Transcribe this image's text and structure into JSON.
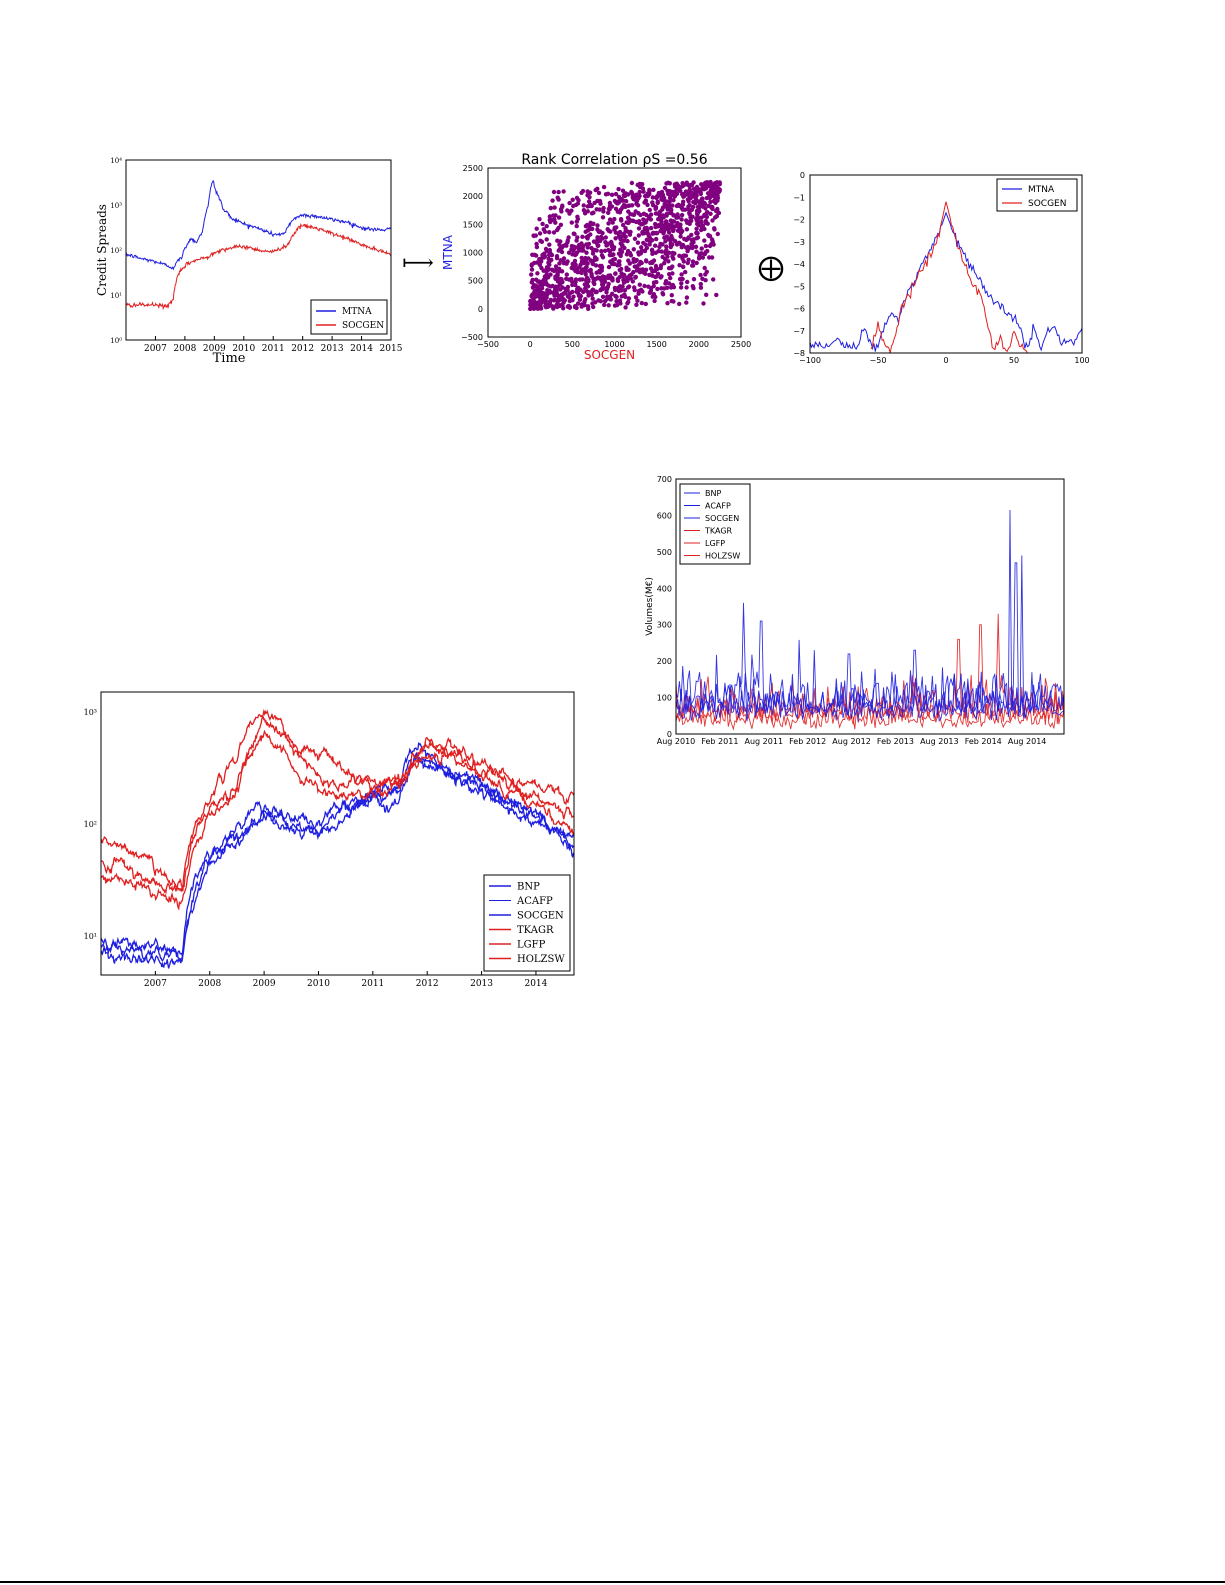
{
  "colors": {
    "blue": "#1f1fe0",
    "red": "#e02020",
    "purple": "#800080",
    "ink": "#000000"
  },
  "symbols": {
    "maps_to": "⟼",
    "oplus": "⨁"
  },
  "chart_data": [
    {
      "id": "spreads_pair",
      "type": "line",
      "title": "",
      "xlabel": "Time",
      "ylabel": "Credit Spreads",
      "yscale": "log",
      "ylim": [
        1,
        10000
      ],
      "xlim": [
        2006.0,
        2015.0
      ],
      "x_ticks": [
        "2007",
        "2008",
        "2009",
        "2010",
        "2011",
        "2012",
        "2013",
        "2014",
        "2015"
      ],
      "y_ticks": [
        "10⁰",
        "10¹",
        "10²",
        "10³",
        "10⁴"
      ],
      "legend": "bottom-right",
      "series": [
        {
          "name": "MTNA",
          "color": "blue",
          "x": [
            2006.0,
            2006.5,
            2007.0,
            2007.4,
            2007.6,
            2007.9,
            2008.2,
            2008.4,
            2008.6,
            2008.8,
            2008.95,
            2009.05,
            2009.3,
            2009.6,
            2010.0,
            2010.5,
            2011.0,
            2011.4,
            2011.7,
            2012.0,
            2012.5,
            2013.0,
            2013.5,
            2014.0,
            2014.5,
            2015.0
          ],
          "y": [
            80,
            65,
            55,
            45,
            40,
            70,
            180,
            150,
            250,
            1000,
            3500,
            2000,
            800,
            500,
            380,
            300,
            220,
            230,
            500,
            600,
            560,
            470,
            420,
            310,
            280,
            290
          ]
        },
        {
          "name": "SOCGEN",
          "color": "red",
          "x": [
            2006.0,
            2006.5,
            2007.0,
            2007.4,
            2007.6,
            2007.8,
            2008.1,
            2008.4,
            2008.8,
            2009.0,
            2009.5,
            2010.0,
            2010.5,
            2011.0,
            2011.5,
            2011.8,
            2012.0,
            2012.5,
            2013.0,
            2013.5,
            2014.0,
            2014.5,
            2015.0
          ],
          "y": [
            6,
            6,
            6,
            5.5,
            8,
            30,
            50,
            60,
            70,
            90,
            110,
            120,
            100,
            90,
            130,
            280,
            350,
            300,
            230,
            180,
            130,
            100,
            80
          ]
        }
      ]
    },
    {
      "id": "rank_correlation",
      "type": "scatter",
      "title": "Rank Correlation ρS =0.56",
      "xlabel": "SOCGEN",
      "ylabel": "MTNA",
      "xlim": [
        -500,
        2500
      ],
      "ylim": [
        -500,
        2500
      ],
      "x_ticks": [
        "−500",
        "0",
        "500",
        "1000",
        "1500",
        "2000",
        "2500"
      ],
      "y_ticks": [
        "−500",
        "0",
        "500",
        "1000",
        "1500",
        "2000",
        "2500"
      ],
      "n_points": 1400,
      "rank_max": 2250,
      "spearman_rho": 0.56
    },
    {
      "id": "log_density",
      "type": "line",
      "title": "",
      "xlim": [
        -100,
        100
      ],
      "ylim": [
        -8,
        0
      ],
      "x_ticks": [
        "−100",
        "−50",
        "0",
        "50",
        "100"
      ],
      "y_ticks": [
        "0",
        "−1",
        "−2",
        "−3",
        "−4",
        "−5",
        "−6",
        "−7",
        "−8"
      ],
      "legend": "top-right",
      "series": [
        {
          "name": "MTNA",
          "color": "blue",
          "x": [
            -100,
            -85,
            -80,
            -75,
            -65,
            -60,
            -55,
            -50,
            -45,
            -40,
            -35,
            -30,
            -25,
            -20,
            -15,
            -10,
            -5,
            0,
            5,
            10,
            15,
            20,
            25,
            30,
            35,
            40,
            45,
            50,
            55,
            60,
            65,
            70,
            75,
            80,
            85,
            90,
            95,
            100
          ],
          "y": [
            -7.7,
            -7.7,
            -7.3,
            -7.7,
            -7.7,
            -6.8,
            -7.7,
            -7.7,
            -6.7,
            -6.2,
            -6.5,
            -5.5,
            -5.0,
            -4.3,
            -3.8,
            -3.3,
            -2.6,
            -1.7,
            -2.5,
            -3.2,
            -3.8,
            -4.2,
            -4.7,
            -5.2,
            -5.6,
            -5.8,
            -6.2,
            -6.5,
            -7.0,
            -7.8,
            -6.7,
            -8.0,
            -6.9,
            -6.9,
            -7.5,
            -7.5,
            -7.4,
            -7.0
          ]
        },
        {
          "name": "SOCGEN",
          "color": "red",
          "x": [
            -55,
            -50,
            -45,
            -40,
            -35,
            -30,
            -25,
            -20,
            -15,
            -10,
            -5,
            0,
            5,
            10,
            15,
            20,
            25,
            30,
            35,
            40,
            45,
            50,
            55,
            60
          ],
          "y": [
            -8.0,
            -6.8,
            -7.5,
            -8.0,
            -6.5,
            -5.6,
            -5.2,
            -4.4,
            -4.0,
            -3.4,
            -2.6,
            -1.2,
            -2.4,
            -3.4,
            -4.1,
            -5.0,
            -5.4,
            -6.4,
            -8.0,
            -7.2,
            -8.0,
            -7.0,
            -7.7,
            -8.0
          ]
        }
      ]
    },
    {
      "id": "volumes",
      "type": "line",
      "title": "",
      "xlabel": "",
      "ylabel": "Volumes(M€)",
      "ylim": [
        0,
        700
      ],
      "xlim": [
        2010.58,
        2015.0
      ],
      "x_ticks": [
        "Aug 2010",
        "Feb 2011",
        "Aug 2011",
        "Feb 2012",
        "Aug 2012",
        "Feb 2013",
        "Aug 2013",
        "Feb 2014",
        "Aug 2014"
      ],
      "y_ticks": [
        "0",
        "100",
        "200",
        "300",
        "400",
        "500",
        "600",
        "700"
      ],
      "legend": "top-left",
      "weeks": 230,
      "series": [
        {
          "name": "BNP",
          "color": "blue",
          "base": 60,
          "amp": 80
        },
        {
          "name": "ACAFP",
          "color": "blue",
          "base": 45,
          "amp": 60
        },
        {
          "name": "SOCGEN",
          "color": "blue",
          "base": 55,
          "amp": 70
        },
        {
          "name": "TKAGR",
          "color": "red",
          "base": 50,
          "amp": 60
        },
        {
          "name": "LGFP",
          "color": "red",
          "base": 40,
          "amp": 50
        },
        {
          "name": "HOLZSW",
          "color": "red",
          "base": 25,
          "amp": 35
        }
      ],
      "peaks": [
        {
          "x": 2011.35,
          "y": 360,
          "color": "blue"
        },
        {
          "x": 2011.55,
          "y": 310,
          "color": "blue"
        },
        {
          "x": 2012.15,
          "y": 230,
          "color": "blue"
        },
        {
          "x": 2012.55,
          "y": 220,
          "color": "blue"
        },
        {
          "x": 2013.3,
          "y": 230,
          "color": "blue"
        },
        {
          "x": 2013.8,
          "y": 260,
          "color": "red"
        },
        {
          "x": 2014.05,
          "y": 300,
          "color": "red"
        },
        {
          "x": 2014.25,
          "y": 330,
          "color": "red"
        },
        {
          "x": 2014.38,
          "y": 615,
          "color": "blue"
        },
        {
          "x": 2014.45,
          "y": 470,
          "color": "blue"
        },
        {
          "x": 2014.52,
          "y": 490,
          "color": "blue"
        }
      ]
    },
    {
      "id": "spreads_six",
      "type": "line",
      "title": "",
      "yscale": "log",
      "ylim": [
        4.5,
        1500
      ],
      "xlim": [
        2006.0,
        2014.7
      ],
      "x_ticks": [
        "2007",
        "2008",
        "2009",
        "2010",
        "2011",
        "2012",
        "2013",
        "2014"
      ],
      "y_ticks": [
        "10¹",
        "10²",
        "10³"
      ],
      "legend": "bottom-right",
      "series": [
        {
          "name": "BNP",
          "color": "blue",
          "x": [
            2006.0,
            2007.0,
            2007.5,
            2008.0,
            2008.5,
            2009.0,
            2009.5,
            2010.0,
            2010.5,
            2011.0,
            2011.5,
            2011.8,
            2012.0,
            2012.5,
            2013.0,
            2013.5,
            2014.0,
            2014.7
          ],
          "y": [
            8,
            7,
            6.5,
            50,
            80,
            110,
            90,
            80,
            110,
            160,
            170,
            380,
            330,
            260,
            190,
            140,
            100,
            60
          ]
        },
        {
          "name": "ACAFP",
          "color": "blue",
          "x": [
            2006.0,
            2007.0,
            2007.5,
            2008.0,
            2008.5,
            2009.0,
            2009.5,
            2010.0,
            2010.5,
            2011.0,
            2011.5,
            2011.8,
            2012.0,
            2012.5,
            2013.0,
            2013.5,
            2014.0,
            2014.7
          ],
          "y": [
            7,
            6,
            6,
            40,
            70,
            130,
            100,
            90,
            140,
            170,
            190,
            420,
            360,
            280,
            210,
            160,
            110,
            70
          ]
        },
        {
          "name": "SOCGEN",
          "color": "blue",
          "x": [
            2006.0,
            2007.0,
            2007.5,
            2008.0,
            2008.5,
            2009.0,
            2009.5,
            2010.0,
            2010.5,
            2011.0,
            2011.5,
            2011.8,
            2012.0,
            2012.5,
            2013.0,
            2013.5,
            2014.0,
            2014.7
          ],
          "y": [
            9,
            8,
            7,
            60,
            90,
            140,
            110,
            95,
            150,
            190,
            210,
            450,
            390,
            300,
            220,
            170,
            120,
            65
          ]
        },
        {
          "name": "TKAGR",
          "color": "red",
          "x": [
            2006.0,
            2006.5,
            2007.0,
            2007.5,
            2008.0,
            2008.5,
            2009.0,
            2009.3,
            2009.6,
            2010.0,
            2010.5,
            2011.0,
            2011.5,
            2012.0,
            2012.5,
            2013.0,
            2013.5,
            2014.0,
            2014.7
          ],
          "y": [
            70,
            60,
            40,
            28,
            160,
            400,
            1100,
            700,
            500,
            450,
            280,
            220,
            230,
            550,
            480,
            350,
            260,
            240,
            170
          ]
        },
        {
          "name": "LGFP",
          "color": "red",
          "x": [
            2006.0,
            2006.5,
            2007.0,
            2007.5,
            2008.0,
            2008.5,
            2009.0,
            2009.3,
            2009.6,
            2010.0,
            2010.5,
            2011.0,
            2011.5,
            2012.0,
            2012.5,
            2013.0,
            2013.5,
            2014.0,
            2014.7
          ],
          "y": [
            45,
            40,
            30,
            25,
            140,
            200,
            800,
            600,
            420,
            250,
            220,
            230,
            250,
            500,
            420,
            300,
            230,
            170,
            100
          ]
        },
        {
          "name": "HOLZSW",
          "color": "red",
          "x": [
            2006.0,
            2006.5,
            2007.0,
            2007.5,
            2008.0,
            2008.5,
            2009.0,
            2009.3,
            2009.6,
            2010.0,
            2010.5,
            2011.0,
            2011.5,
            2012.0,
            2012.5,
            2013.0,
            2013.5,
            2014.0,
            2014.7
          ],
          "y": [
            35,
            32,
            24,
            22,
            120,
            180,
            650,
            450,
            300,
            200,
            180,
            190,
            210,
            420,
            380,
            260,
            200,
            150,
            85
          ]
        }
      ]
    }
  ]
}
